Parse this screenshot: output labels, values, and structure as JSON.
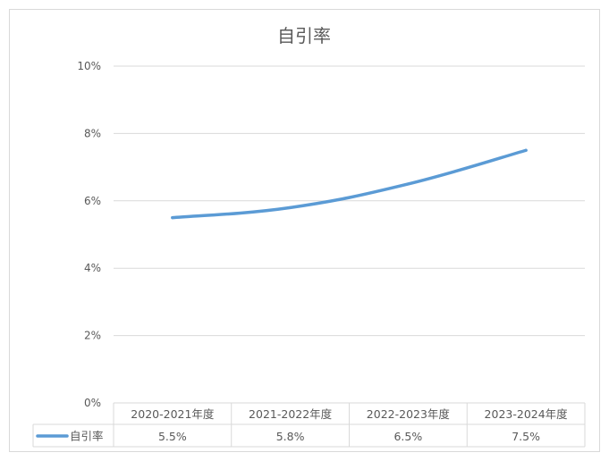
{
  "chart_data": {
    "type": "line",
    "title": "自引率",
    "categories": [
      "2020-2021年度",
      "2021-2022年度",
      "2022-2023年度",
      "2023-2024年度"
    ],
    "series": [
      {
        "name": "自引率",
        "values": [
          5.5,
          5.8,
          6.5,
          7.5
        ],
        "value_labels": [
          "5.5%",
          "5.8%",
          "6.5%",
          "7.5%"
        ],
        "color": "#5b9bd5"
      }
    ],
    "ylim": [
      0,
      10
    ],
    "yticks": [
      0,
      2,
      4,
      6,
      8,
      10
    ],
    "ytick_labels": [
      "0%",
      "2%",
      "4%",
      "6%",
      "8%",
      "10%"
    ],
    "grid": true,
    "legend": "data-table-left"
  }
}
